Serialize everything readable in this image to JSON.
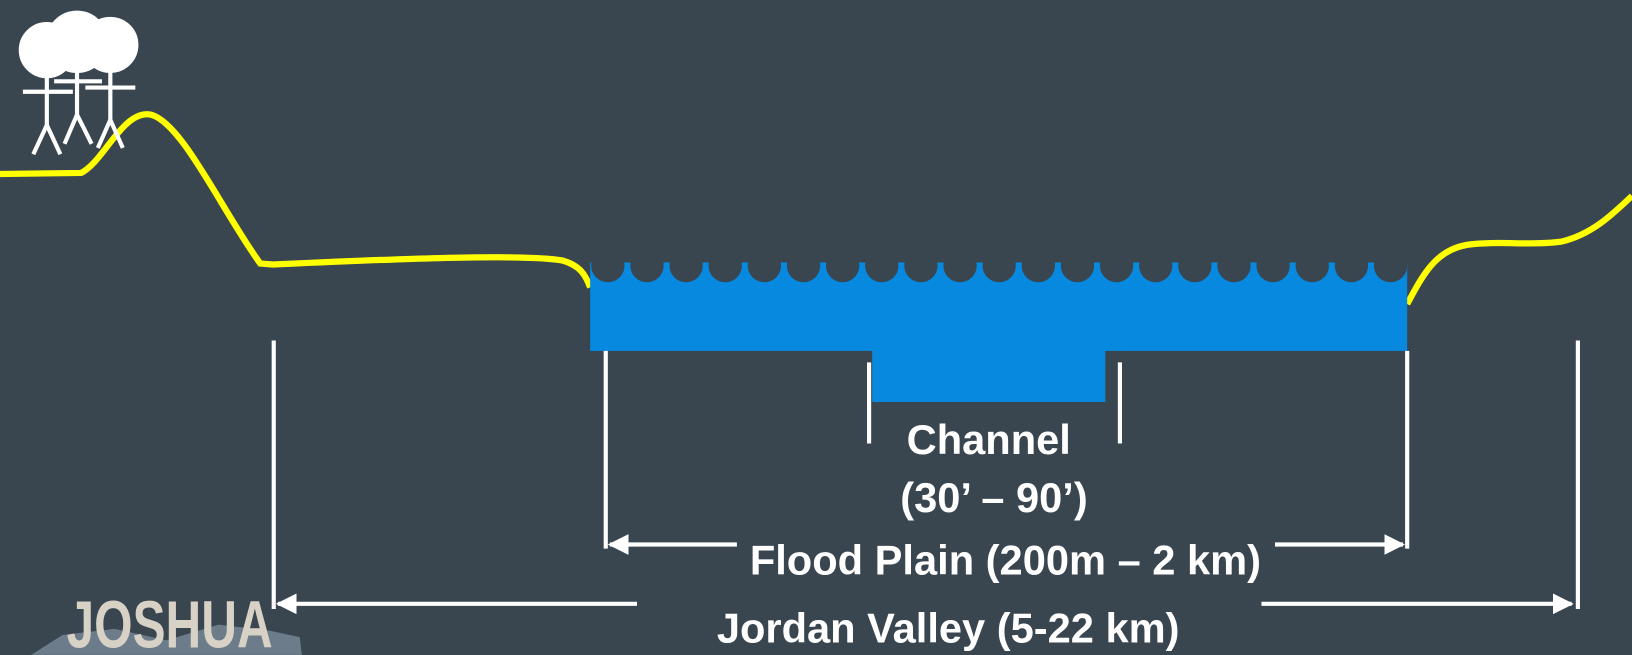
{
  "labels": {
    "channel": "Channel",
    "channel_depth": "(30’ – 90’)",
    "flood_plain": "Flood Plain (200m – 2 km)",
    "jordan_valley": "Jordan Valley (5-22 km)"
  },
  "logo": "JOSHUA"
}
